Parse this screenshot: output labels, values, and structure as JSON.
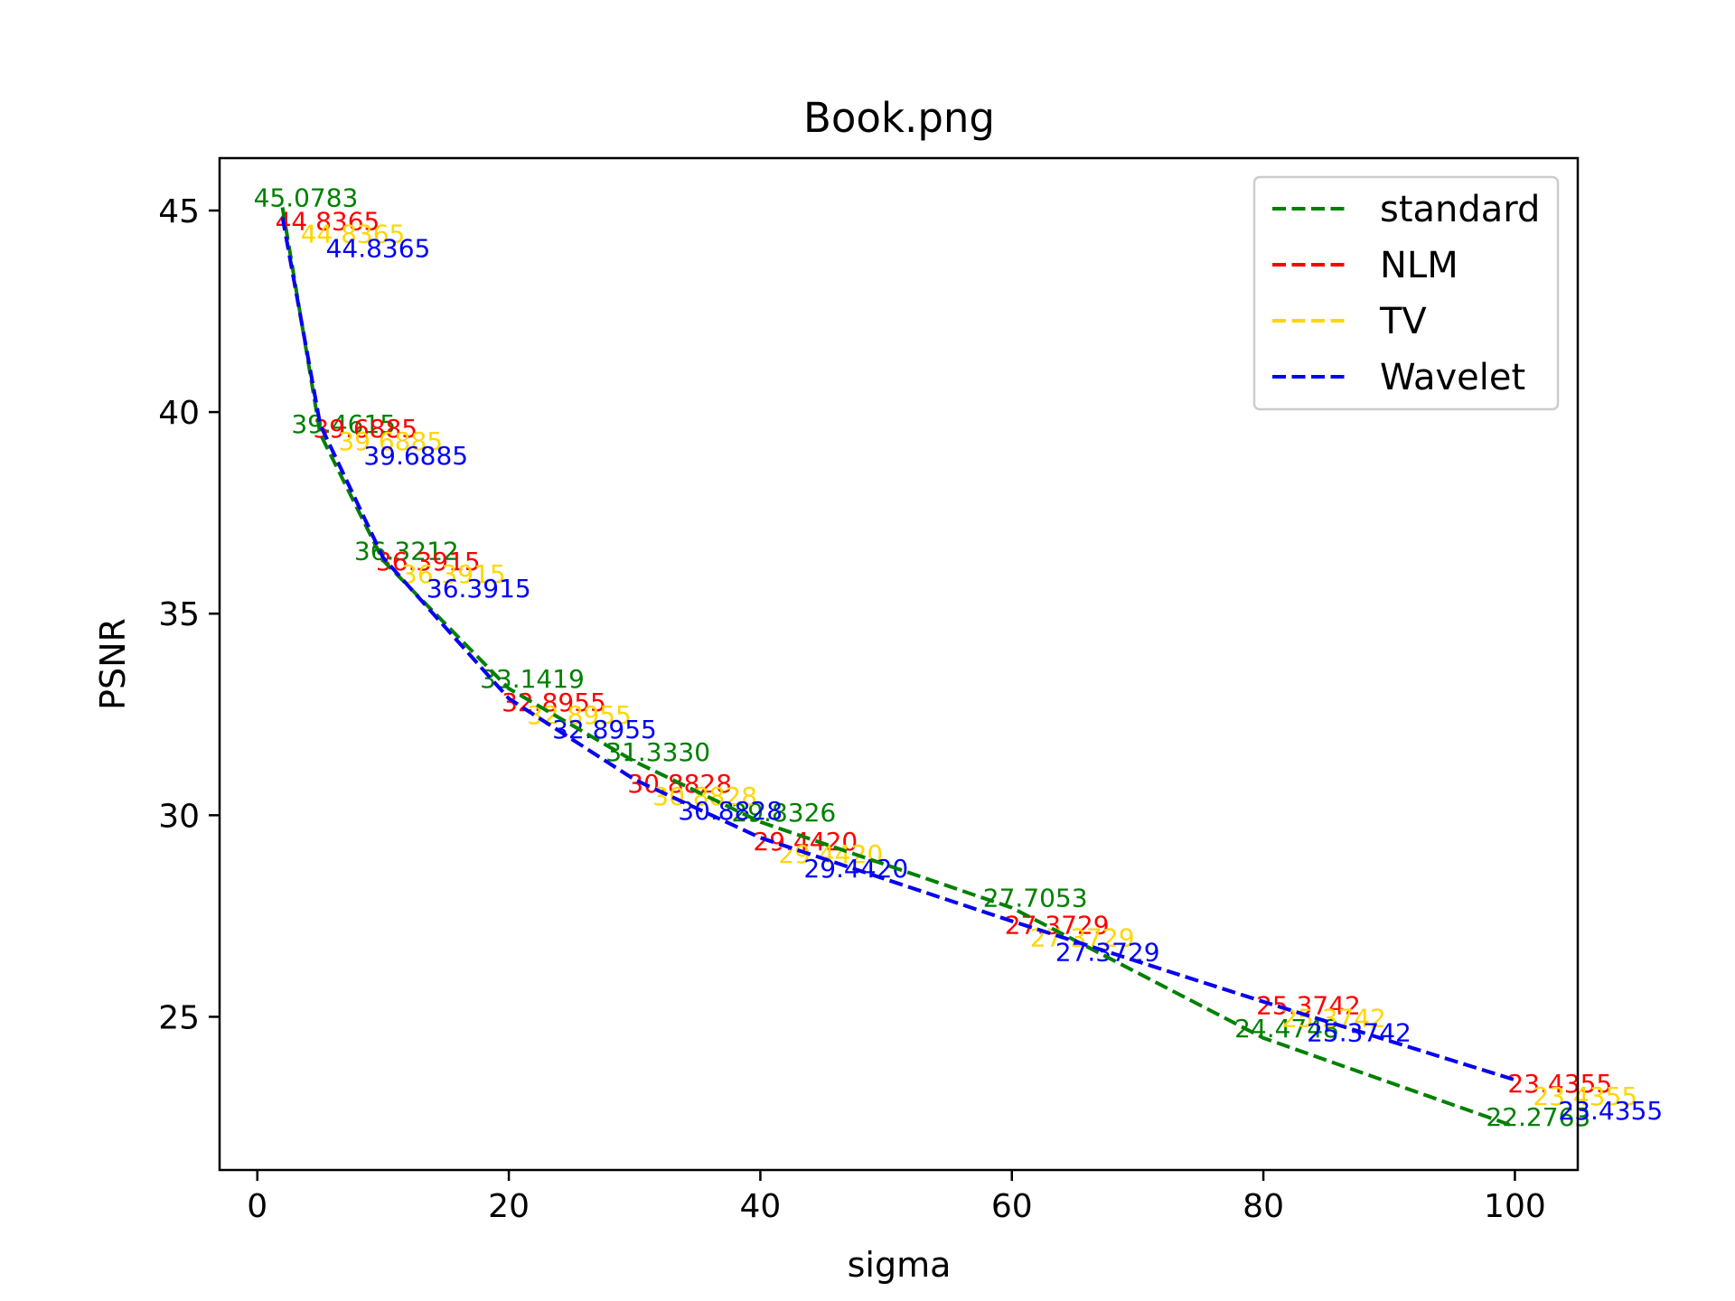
{
  "chart_data": {
    "type": "line",
    "title": "Book.png",
    "xlabel": "sigma",
    "ylabel": "PSNR",
    "x": [
      2,
      5,
      10,
      20,
      30,
      40,
      60,
      80,
      100
    ],
    "xlim": [
      -3,
      105
    ],
    "ylim": [
      21.2,
      46.3
    ],
    "xticks": [
      0,
      20,
      40,
      60,
      80,
      100
    ],
    "yticks": [
      25,
      30,
      35,
      40,
      45
    ],
    "grid": false,
    "legend_position": "top-right",
    "series": [
      {
        "name": "standard",
        "color": "#008000",
        "values": [
          45.0783,
          39.4615,
          36.3212,
          33.1419,
          31.333,
          29.8326,
          27.7053,
          24.4748,
          22.2763
        ],
        "labels": [
          "45.0783",
          "39.4615",
          "36.3212",
          "33.1419",
          "31.3330",
          "29.8326",
          "27.7053",
          "24.4748",
          "22.2763"
        ]
      },
      {
        "name": "NLM",
        "color": "#ff0000",
        "values": [
          44.8365,
          39.6885,
          36.3915,
          32.8955,
          30.8828,
          29.442,
          27.3729,
          25.3742,
          23.4355
        ],
        "labels": [
          "44.8365",
          "39.6885",
          "36.3915",
          "32.8955",
          "30.8828",
          "29.4420",
          "27.3729",
          "25.3742",
          "23.4355"
        ]
      },
      {
        "name": "TV",
        "color": "#ffd700",
        "values": [
          44.8365,
          39.6885,
          36.3915,
          32.8955,
          30.8828,
          29.442,
          27.3729,
          25.3742,
          23.4355
        ],
        "labels": [
          "44.8365",
          "39.6885",
          "36.3915",
          "32.8955",
          "30.8828",
          "29.4420",
          "27.3729",
          "25.3742",
          "23.4355"
        ]
      },
      {
        "name": "Wavelet",
        "color": "#0000ff",
        "values": [
          44.8365,
          39.6885,
          36.3915,
          32.8955,
          30.8828,
          29.442,
          27.3729,
          25.3742,
          23.4355
        ],
        "labels": [
          "44.8365",
          "39.6885",
          "36.3915",
          "32.8955",
          "30.8828",
          "29.4420",
          "27.3729",
          "25.3742",
          "23.4355"
        ]
      }
    ]
  }
}
